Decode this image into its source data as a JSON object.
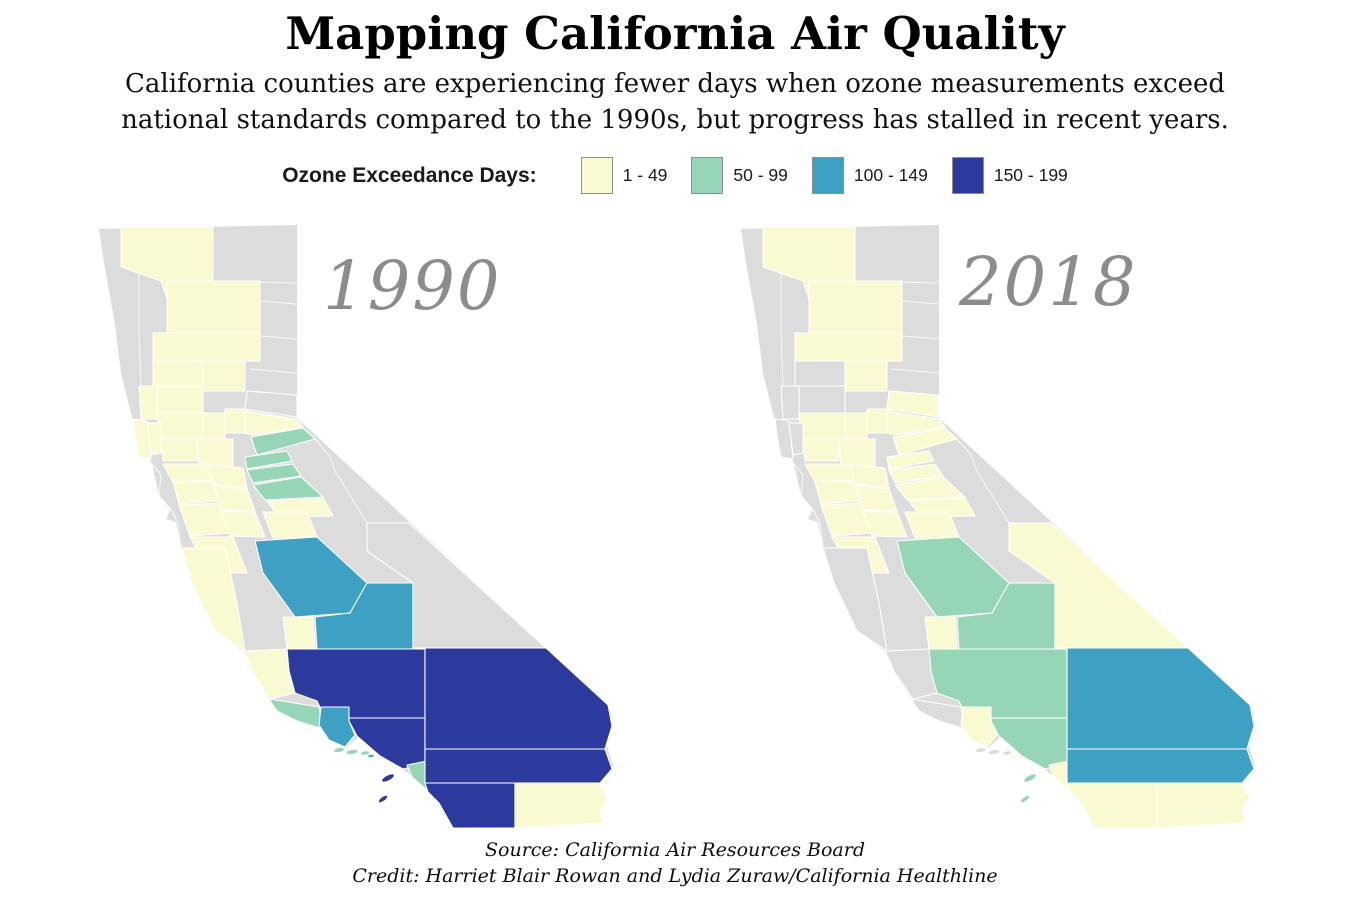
{
  "header": {
    "title": "Mapping California Air Quality",
    "subtitle": "California counties are experiencing fewer days when ozone measurements exceed national standards compared to the 1990s, but progress has stalled in recent years."
  },
  "legend": {
    "label": "Ozone Exceedance Days:",
    "categories": [
      {
        "label": "1 - 49",
        "color": "#fafad2"
      },
      {
        "label": "50 - 99",
        "color": "#96d5b5"
      },
      {
        "label": "100 - 149",
        "color": "#3ea0c3"
      },
      {
        "label": "150 - 199",
        "color": "#2d3a9d"
      }
    ],
    "no_data_color": "#dcdcdc"
  },
  "chart_data": {
    "type": "heatmap",
    "subtype": "choropleth-map-pair",
    "geography": "California counties",
    "measure": "Ozone Exceedance Days",
    "bins": [
      "1 - 49",
      "50 - 99",
      "100 - 149",
      "150 - 199"
    ],
    "no_data_label": "no-data",
    "maps": [
      {
        "year": "1990",
        "counties": {
          "Alameda": "1 - 49",
          "Alpine": "no-data",
          "Amador": "50 - 99",
          "Butte": "1 - 49",
          "Calaveras": "50 - 99",
          "Colusa": "1 - 49",
          "Contra Costa": "1 - 49",
          "Del Norte": "no-data",
          "El Dorado": "50 - 99",
          "Fresno": "100 - 149",
          "Glenn": "1 - 49",
          "Humboldt": "no-data",
          "Imperial": "1 - 49",
          "Inyo": "no-data",
          "Kern": "150 - 199",
          "Kings": "1 - 49",
          "Lake": "1 - 49",
          "Lassen": "no-data",
          "Los Angeles": "150 - 199",
          "Madera": "1 - 49",
          "Marin": "no-data",
          "Mariposa": "1 - 49",
          "Mendocino": "no-data",
          "Merced": "1 - 49",
          "Modoc": "no-data",
          "Mono": "no-data",
          "Monterey": "1 - 49",
          "Napa": "1 - 49",
          "Nevada": "no-data",
          "Orange": "50 - 99",
          "Placer": "1 - 49",
          "Plumas": "no-data",
          "Riverside": "150 - 199",
          "Sacramento": "1 - 49",
          "San Benito": "1 - 49",
          "San Bernardino": "150 - 199",
          "San Diego": "150 - 199",
          "San Francisco": "no-data",
          "San Joaquin": "1 - 49",
          "San Luis Obispo": "1 - 49",
          "San Mateo": "no-data",
          "Santa Barbara": "50 - 99",
          "Santa Clara": "1 - 49",
          "Santa Cruz": "no-data",
          "Shasta": "1 - 49",
          "Sierra": "no-data",
          "Siskiyou": "1 - 49",
          "Solano": "1 - 49",
          "Sonoma": "1 - 49",
          "Stanislaus": "1 - 49",
          "Sutter": "1 - 49",
          "Tehama": "1 - 49",
          "Trinity": "no-data",
          "Tulare": "100 - 149",
          "Tuolumne": "50 - 99",
          "Ventura": "100 - 149",
          "Yolo": "1 - 49",
          "Yuba": "1 - 49"
        }
      },
      {
        "year": "2018",
        "counties": {
          "Alameda": "1 - 49",
          "Alpine": "no-data",
          "Amador": "1 - 49",
          "Butte": "1 - 49",
          "Calaveras": "1 - 49",
          "Colusa": "no-data",
          "Contra Costa": "1 - 49",
          "Del Norte": "no-data",
          "El Dorado": "1 - 49",
          "Fresno": "50 - 99",
          "Glenn": "no-data",
          "Humboldt": "no-data",
          "Imperial": "1 - 49",
          "Inyo": "1 - 49",
          "Kern": "50 - 99",
          "Kings": "1 - 49",
          "Lake": "no-data",
          "Lassen": "no-data",
          "Los Angeles": "50 - 99",
          "Madera": "1 - 49",
          "Marin": "no-data",
          "Mariposa": "1 - 49",
          "Mendocino": "no-data",
          "Merced": "1 - 49",
          "Modoc": "no-data",
          "Mono": "no-data",
          "Monterey": "no-data",
          "Napa": "no-data",
          "Nevada": "1 - 49",
          "Orange": "1 - 49",
          "Placer": "1 - 49",
          "Plumas": "no-data",
          "Riverside": "100 - 149",
          "Sacramento": "1 - 49",
          "San Benito": "1 - 49",
          "San Bernardino": "100 - 149",
          "San Diego": "1 - 49",
          "San Francisco": "no-data",
          "San Joaquin": "1 - 49",
          "San Luis Obispo": "no-data",
          "San Mateo": "no-data",
          "Santa Barbara": "no-data",
          "Santa Clara": "1 - 49",
          "Santa Cruz": "no-data",
          "Shasta": "1 - 49",
          "Sierra": "no-data",
          "Siskiyou": "1 - 49",
          "Solano": "1 - 49",
          "Sonoma": "no-data",
          "Stanislaus": "1 - 49",
          "Sutter": "1 - 49",
          "Tehama": "1 - 49",
          "Trinity": "no-data",
          "Tulare": "50 - 99",
          "Tuolumne": "1 - 49",
          "Ventura": "1 - 49",
          "Yolo": "1 - 49",
          "Yuba": "1 - 49"
        }
      }
    ]
  },
  "footer": {
    "source": "Source: California Air Resources Board",
    "credit": "Credit: Harriet Blair Rowan and Lydia Zuraw/California Healthline"
  }
}
